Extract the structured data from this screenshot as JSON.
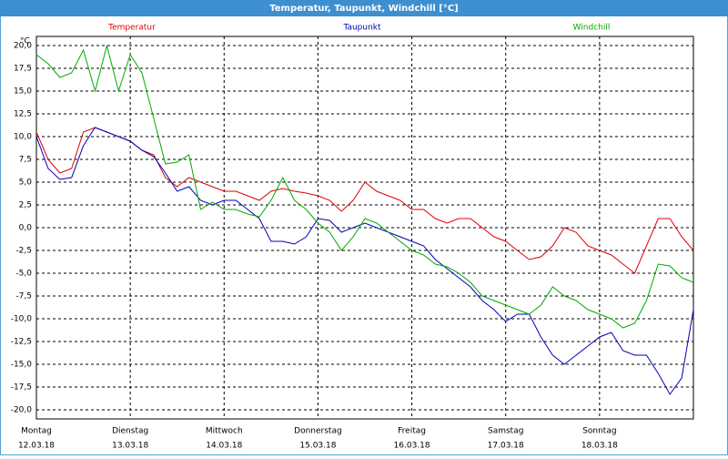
{
  "chart_data": {
    "type": "line",
    "title": "Temperatur, Taupunkt, Windchill [°C]",
    "y_unit": "°C",
    "x": [
      0,
      0.125,
      0.25,
      0.375,
      0.5,
      0.625,
      0.75,
      0.875,
      1,
      1.125,
      1.25,
      1.375,
      1.5,
      1.625,
      1.75,
      1.875,
      2,
      2.125,
      2.25,
      2.375,
      2.5,
      2.625,
      2.75,
      2.875,
      3,
      3.125,
      3.25,
      3.375,
      3.5,
      3.625,
      3.75,
      3.875,
      4,
      4.125,
      4.25,
      4.375,
      4.5,
      4.625,
      4.75,
      4.875,
      5,
      5.125,
      5.25,
      5.375,
      5.5,
      5.625,
      5.75,
      5.875,
      6,
      6.125,
      6.25,
      6.375,
      6.5,
      6.625,
      6.75,
      6.875,
      7
    ],
    "series": [
      {
        "name": "Temperatur",
        "color": "#dd0000",
        "values": [
          10.5,
          7.5,
          6,
          6.5,
          10.5,
          11,
          10.5,
          10,
          9.5,
          8.5,
          8,
          5.5,
          4.5,
          5.5,
          5,
          4.5,
          4,
          4,
          3.5,
          3,
          4,
          4.3,
          4,
          3.8,
          3.5,
          3,
          1.8,
          3,
          5,
          4,
          3.5,
          3,
          2,
          2,
          1,
          0.5,
          1,
          1,
          0,
          -1,
          -1.5,
          -2.5,
          -3.5,
          -3.2,
          -2,
          0,
          -0.5,
          -2,
          -2.5,
          -3,
          -4,
          -5,
          -2,
          1,
          1,
          -1,
          -2.5
        ]
      },
      {
        "name": "Taupunkt",
        "color": "#0000bb",
        "values": [
          10,
          6.5,
          5.3,
          5.5,
          9,
          11,
          10.5,
          10,
          9.5,
          8.5,
          7.8,
          6,
          4,
          4.5,
          3,
          2.5,
          3,
          3,
          2,
          1,
          -1.5,
          -1.5,
          -1.8,
          -1,
          1,
          0.8,
          -0.5,
          0,
          0.5,
          0,
          -0.5,
          -1,
          -1.5,
          -2,
          -3.5,
          -4.5,
          -5.5,
          -6.5,
          -8,
          -9,
          -10.3,
          -9.5,
          -9.5,
          -12,
          -14,
          -15,
          -14,
          -13,
          -12,
          -11.5,
          -13.5,
          -14,
          -14,
          -16,
          -18.3,
          -16.5,
          -9
        ]
      },
      {
        "name": "Windchill",
        "color": "#00aa00",
        "values": [
          19,
          18,
          16.5,
          17,
          19.5,
          15,
          20,
          15,
          19,
          17,
          12,
          7,
          7.2,
          8,
          2,
          2.8,
          2,
          2,
          1.5,
          1.2,
          3,
          5.5,
          3,
          2,
          0.5,
          -0.5,
          -2.5,
          -1,
          1,
          0.5,
          -0.5,
          -1.5,
          -2.5,
          -3,
          -4,
          -4.3,
          -5,
          -6,
          -7.5,
          -8,
          -8.5,
          -9,
          -9.5,
          -8.5,
          -6.5,
          -7.5,
          -8,
          -9,
          -9.5,
          -10,
          -11,
          -10.5,
          -8,
          -4,
          -4.2,
          -5.5,
          -6
        ]
      }
    ],
    "xlim": [
      0,
      7
    ],
    "xticks": [
      {
        "value": 0,
        "label": "Montag"
      },
      {
        "value": 1,
        "label": "Dienstag"
      },
      {
        "value": 2,
        "label": "Mittwoch"
      },
      {
        "value": 3,
        "label": "Donnerstag"
      },
      {
        "value": 4,
        "label": "Freitag"
      },
      {
        "value": 5,
        "label": "Samstag"
      },
      {
        "value": 6,
        "label": "Sonntag"
      }
    ],
    "xtick_dates": [
      "12.03.18",
      "13.03.18",
      "14.03.18",
      "15.03.18",
      "16.03.18",
      "17.03.18",
      "18.03.18"
    ],
    "ylim": [
      -21,
      21
    ],
    "yticks": [
      {
        "value": 20,
        "label": "20,0"
      },
      {
        "value": 17.5,
        "label": "17,5"
      },
      {
        "value": 15,
        "label": "15,0"
      },
      {
        "value": 12.5,
        "label": "12,5"
      },
      {
        "value": 10,
        "label": "10,0"
      },
      {
        "value": 7.5,
        "label": "7,5"
      },
      {
        "value": 5,
        "label": "5,0"
      },
      {
        "value": 2.5,
        "label": "2,5"
      },
      {
        "value": 0,
        "label": "0,0"
      },
      {
        "value": -2.5,
        "label": "-2,5"
      },
      {
        "value": -5,
        "label": "-5,0"
      },
      {
        "value": -7.5,
        "label": "-7,5"
      },
      {
        "value": -10,
        "label": "-10,0"
      },
      {
        "value": -12.5,
        "label": "-12,5"
      },
      {
        "value": -15,
        "label": "-15,0"
      },
      {
        "value": -17.5,
        "label": "-17,5"
      },
      {
        "value": -20,
        "label": "-20,0"
      }
    ],
    "grid": true
  }
}
